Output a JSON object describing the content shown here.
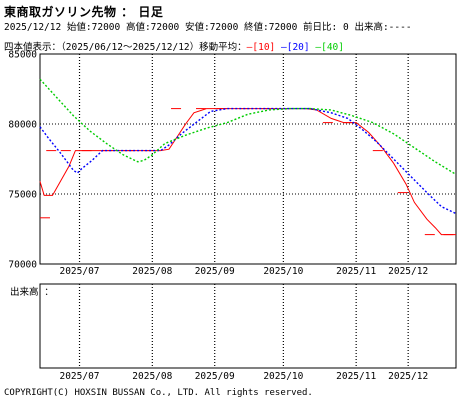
{
  "header": {
    "title": "東商取ガソリン先物 ： 日足",
    "info": "2025/12/12 始値:72000 高値:72000 安値:72000 終値:72000 前日比: 0 出来高:----",
    "subtitle_prefix": "四本値表示：（2025/06/12～2025/12/12）移動平均：",
    "ma_labels": [
      "[10]",
      "[20]",
      "[40]"
    ]
  },
  "volume_label": "出来高 ：",
  "copyright": "COPYRIGHT(C) HOXSIN BUSSAN Co., LTD. All rights reserved.",
  "colors": {
    "price": "#ff0000",
    "ma10": "#ff0000",
    "ma20": "#0000ff",
    "ma40": "#00cc00",
    "grid": "#000000"
  },
  "chart_data": {
    "type": "line",
    "ylim": [
      70000,
      85000
    ],
    "y_ticks": [
      "85000",
      "80000",
      "75000",
      "70000"
    ],
    "x_months": [
      "2025/07",
      "2025/08",
      "2025/09",
      "2025/10",
      "2025/11",
      "2025/12"
    ],
    "month_days": [
      19,
      54,
      84,
      117,
      152,
      177
    ],
    "x_range_days": [
      0,
      200
    ],
    "ohlc_dashes": [
      {
        "day": 0,
        "value": 73300
      },
      {
        "day": 3,
        "value": 78100
      },
      {
        "day": 10,
        "value": 78100
      },
      {
        "day": 20,
        "value": 78100
      },
      {
        "day": 30,
        "value": 78100
      },
      {
        "day": 40,
        "value": 78100
      },
      {
        "day": 50,
        "value": 78100
      },
      {
        "day": 63,
        "value": 81100
      },
      {
        "day": 75,
        "value": 81100
      },
      {
        "day": 85,
        "value": 81100
      },
      {
        "day": 96,
        "value": 81100
      },
      {
        "day": 106,
        "value": 81100
      },
      {
        "day": 116,
        "value": 81100
      },
      {
        "day": 126,
        "value": 81100
      },
      {
        "day": 136,
        "value": 80100
      },
      {
        "day": 146,
        "value": 80100
      },
      {
        "day": 160,
        "value": 78100
      },
      {
        "day": 172,
        "value": 75100
      },
      {
        "day": 185,
        "value": 72100
      },
      {
        "day": 194,
        "value": 72100
      }
    ],
    "series": [
      {
        "name": "[10]",
        "x": [
          0,
          1,
          2,
          6,
          14,
          17,
          19,
          22,
          30,
          40,
          50,
          58,
          62,
          66,
          70,
          74,
          80,
          90,
          100,
          110,
          120,
          128,
          133,
          140,
          146,
          152,
          158,
          164,
          170,
          176,
          180,
          186,
          190,
          193,
          196,
          200
        ],
        "values": [
          75900,
          75400,
          74900,
          74900,
          77000,
          78100,
          78100,
          78100,
          78100,
          78100,
          78100,
          78100,
          78200,
          79100,
          80000,
          80800,
          81100,
          81100,
          81100,
          81100,
          81100,
          81100,
          81000,
          80400,
          80100,
          80100,
          79400,
          78400,
          77200,
          75700,
          74400,
          73200,
          72600,
          72100,
          72100,
          72100
        ]
      },
      {
        "name": "[20]",
        "x": [
          0,
          4,
          10,
          16,
          18,
          20,
          25,
          30,
          40,
          50,
          58,
          62,
          68,
          75,
          82,
          90,
          100,
          110,
          120,
          130,
          140,
          148,
          155,
          162,
          170,
          178,
          186,
          193,
          200
        ],
        "values": [
          79800,
          79000,
          77900,
          76700,
          76500,
          76800,
          77400,
          78100,
          78100,
          78100,
          78100,
          78500,
          79300,
          80100,
          80900,
          81100,
          81100,
          81100,
          81100,
          81100,
          80800,
          80400,
          79600,
          78700,
          77500,
          76300,
          75100,
          74100,
          73600
        ]
      },
      {
        "name": "[40]",
        "x": [
          0,
          8,
          16,
          24,
          32,
          40,
          47,
          50,
          54,
          60,
          70,
          80,
          90,
          100,
          110,
          120,
          130,
          140,
          150,
          160,
          170,
          180,
          190,
          200
        ],
        "values": [
          83200,
          81900,
          80600,
          79500,
          78600,
          77800,
          77300,
          77400,
          77800,
          78600,
          79200,
          79700,
          80100,
          80700,
          81000,
          81100,
          81100,
          81000,
          80600,
          80100,
          79300,
          78300,
          77300,
          76400
        ]
      }
    ]
  }
}
